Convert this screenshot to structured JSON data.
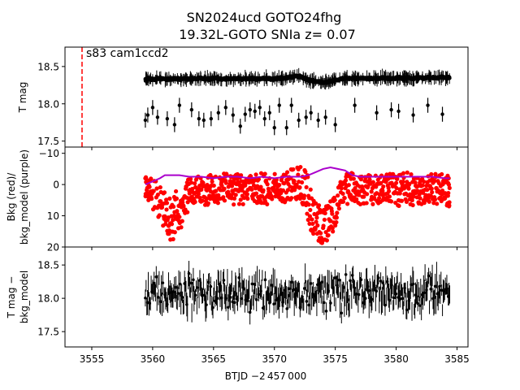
{
  "title_line1": "SN2024ucd  GOTO24fhg",
  "title_line2": "19.32L-GOTO SNIa z= 0.07",
  "annotation": "s83 cam1ccd2",
  "xlabel": "BTJD −2 457 000",
  "colors": {
    "flux": "#000000",
    "bkg": "#ff0000",
    "bkg_model": "#aa00cc",
    "marker_line": "#ff0000"
  },
  "chart_data": [
    {
      "type": "scatter",
      "name": "top",
      "ylabel": [
        "T mag"
      ],
      "y_inverted": true,
      "xlim": [
        3552.8,
        3585.9
      ],
      "ylim": [
        18.76,
        17.42
      ],
      "yticks": [
        17.5,
        18.0,
        18.5
      ],
      "ytick_labels": [
        "17.5",
        "18.0",
        "18.5"
      ],
      "vline_x": 3554.2,
      "series": [
        {
          "points": [
            [
              3559.4,
              18.32
            ],
            [
              3559.6,
              18.34
            ],
            [
              3559.8,
              18.33
            ],
            [
              3560.2,
              18.33
            ],
            [
              3560.6,
              18.34
            ],
            [
              3561.0,
              18.33
            ],
            [
              3561.4,
              18.33
            ],
            [
              3561.8,
              18.34
            ],
            [
              3562.2,
              18.33
            ],
            [
              3562.6,
              18.34
            ],
            [
              3563.0,
              18.33
            ],
            [
              3563.4,
              18.34
            ],
            [
              3563.8,
              18.34
            ],
            [
              3564.2,
              18.34
            ],
            [
              3564.6,
              18.33
            ],
            [
              3565.0,
              18.34
            ],
            [
              3565.4,
              18.34
            ],
            [
              3565.8,
              18.33
            ],
            [
              3566.2,
              18.34
            ],
            [
              3566.6,
              18.34
            ],
            [
              3567.0,
              18.34
            ],
            [
              3567.4,
              18.33
            ],
            [
              3567.8,
              18.34
            ],
            [
              3568.2,
              18.34
            ],
            [
              3568.6,
              18.33
            ],
            [
              3569.0,
              18.34
            ],
            [
              3569.4,
              18.34
            ],
            [
              3569.8,
              18.33
            ],
            [
              3570.2,
              18.34
            ],
            [
              3570.6,
              18.34
            ],
            [
              3571.0,
              18.35
            ],
            [
              3571.4,
              18.36
            ],
            [
              3571.8,
              18.37
            ],
            [
              3572.2,
              18.36
            ],
            [
              3572.6,
              18.33
            ],
            [
              3573.0,
              18.31
            ],
            [
              3573.4,
              18.3
            ],
            [
              3573.8,
              18.29
            ],
            [
              3574.2,
              18.29
            ],
            [
              3574.6,
              18.3
            ],
            [
              3575.0,
              18.32
            ],
            [
              3575.4,
              18.33
            ],
            [
              3575.8,
              18.34
            ],
            [
              3576.2,
              18.34
            ],
            [
              3576.6,
              18.34
            ],
            [
              3577.0,
              18.34
            ],
            [
              3577.4,
              18.34
            ],
            [
              3577.8,
              18.34
            ],
            [
              3578.2,
              18.34
            ],
            [
              3578.6,
              18.34
            ],
            [
              3579.0,
              18.35
            ],
            [
              3579.4,
              18.34
            ],
            [
              3579.8,
              18.34
            ],
            [
              3580.2,
              18.35
            ],
            [
              3580.6,
              18.34
            ],
            [
              3581.0,
              18.35
            ],
            [
              3581.4,
              18.34
            ],
            [
              3581.8,
              18.35
            ],
            [
              3582.2,
              18.34
            ],
            [
              3582.6,
              18.35
            ],
            [
              3583.0,
              18.35
            ],
            [
              3583.4,
              18.35
            ],
            [
              3583.8,
              18.36
            ],
            [
              3584.2,
              18.35
            ],
            [
              3584.4,
              18.36
            ]
          ]
        },
        {
          "outliers": [
            [
              3559.4,
              17.78
            ],
            [
              3559.6,
              17.85
            ],
            [
              3560.0,
              17.95
            ],
            [
              3560.4,
              17.82
            ],
            [
              3561.2,
              17.8
            ],
            [
              3561.8,
              17.72
            ],
            [
              3562.2,
              17.98
            ],
            [
              3563.2,
              17.92
            ],
            [
              3563.8,
              17.8
            ],
            [
              3564.2,
              17.78
            ],
            [
              3564.8,
              17.8
            ],
            [
              3565.4,
              17.88
            ],
            [
              3566.0,
              17.95
            ],
            [
              3566.6,
              17.85
            ],
            [
              3567.2,
              17.7
            ],
            [
              3567.6,
              17.86
            ],
            [
              3568.0,
              17.92
            ],
            [
              3568.4,
              17.9
            ],
            [
              3568.8,
              17.95
            ],
            [
              3569.2,
              17.8
            ],
            [
              3569.6,
              17.88
            ],
            [
              3570.0,
              17.68
            ],
            [
              3570.4,
              17.98
            ],
            [
              3571.0,
              17.68
            ],
            [
              3571.4,
              17.98
            ],
            [
              3572.0,
              17.78
            ],
            [
              3572.6,
              17.82
            ],
            [
              3573.0,
              17.88
            ],
            [
              3573.6,
              17.78
            ],
            [
              3574.2,
              17.82
            ],
            [
              3575.0,
              17.72
            ],
            [
              3576.6,
              17.98
            ],
            [
              3578.4,
              17.88
            ],
            [
              3579.6,
              17.92
            ],
            [
              3580.2,
              17.9
            ],
            [
              3581.4,
              17.85
            ],
            [
              3582.6,
              17.98
            ],
            [
              3583.8,
              17.86
            ]
          ]
        }
      ]
    },
    {
      "type": "scatter",
      "name": "middle",
      "ylabel": [
        "Bkg (red)/",
        "bkg_model (purple)"
      ],
      "xlim": [
        3552.8,
        3585.9
      ],
      "ylim": [
        -12,
        20
      ],
      "yticks": [
        -10,
        0,
        10,
        20
      ],
      "ytick_labels": [
        "−10",
        "0",
        "10",
        "20"
      ],
      "series": [
        {
          "name": "Bkg",
          "x": [
            3559.4,
            3559.6,
            3560.0,
            3560.6,
            3561.0,
            3561.4,
            3561.8,
            3562.2,
            3562.6,
            3563.0,
            3563.4,
            3563.8,
            3564.2,
            3564.6,
            3565.0,
            3565.4,
            3565.8,
            3566.2,
            3566.6,
            3567.0,
            3567.4,
            3567.8,
            3568.2,
            3568.6,
            3569.0,
            3569.4,
            3569.8,
            3570.2,
            3570.6,
            3571.0,
            3571.4,
            3571.8,
            3572.2,
            3572.6,
            3573.0,
            3573.4,
            3573.8,
            3574.2,
            3574.6,
            3575.0,
            3575.4,
            3575.8,
            3576.2,
            3576.6,
            3577.0,
            3577.4,
            3577.8,
            3578.2,
            3578.6,
            3579.0,
            3579.4,
            3579.8,
            3580.2,
            3580.6,
            3581.0,
            3581.4,
            3581.8,
            3582.2,
            3582.6,
            3583.0,
            3583.4,
            3583.8,
            3584.2,
            3584.4
          ],
          "center": [
            1,
            2,
            3,
            6,
            10,
            11,
            10,
            9,
            6,
            3,
            2,
            2,
            2,
            1.5,
            1,
            2,
            1,
            1,
            2,
            1,
            2,
            1,
            1,
            2,
            1,
            2,
            1,
            1,
            2,
            1,
            0,
            0,
            -1,
            2,
            8,
            12,
            13,
            13,
            11,
            8,
            4,
            2,
            1,
            1,
            2,
            1,
            1,
            2,
            1,
            2,
            1,
            1,
            2,
            1,
            1,
            2,
            2,
            1,
            2,
            1,
            2,
            1,
            2,
            2
          ],
          "spread": [
            4,
            4,
            5,
            6,
            8,
            8,
            8,
            7,
            6,
            5,
            5,
            5,
            5,
            5,
            5,
            5,
            5,
            5,
            5,
            5,
            5,
            5,
            5,
            5,
            5,
            5,
            5,
            5,
            5,
            5,
            5,
            5,
            6,
            7,
            7,
            6,
            6,
            6,
            6,
            6,
            6,
            5,
            5,
            5,
            5,
            5,
            5,
            5,
            5,
            5,
            5,
            5,
            5,
            5,
            5,
            5,
            5,
            5,
            5,
            5,
            5,
            5,
            5,
            5
          ]
        },
        {
          "name": "bkg_model",
          "x": [
            3559.4,
            3560.0,
            3560.6,
            3561.0,
            3561.6,
            3562.2,
            3563.0,
            3564.0,
            3565.0,
            3566.0,
            3567.0,
            3568.0,
            3569.0,
            3570.0,
            3571.0,
            3571.6,
            3572.2,
            3572.8,
            3573.4,
            3574.0,
            3574.6,
            3575.2,
            3575.8,
            3576.4,
            3577.0,
            3578.0,
            3579.0,
            3580.0,
            3581.0,
            3582.0,
            3583.0,
            3584.0,
            3584.4
          ],
          "y": [
            0,
            -1,
            -2,
            -3,
            -3,
            -3,
            -2.5,
            -2.5,
            -2,
            -2.5,
            -2.5,
            -2,
            -2.5,
            -2,
            -2.5,
            -2.5,
            -2.5,
            -3,
            -4,
            -5,
            -5.5,
            -5,
            -4.5,
            -3,
            -2.5,
            -2.5,
            -2.5,
            -2.5,
            -2.5,
            -2.5,
            -2.5,
            -2,
            -2
          ]
        }
      ]
    },
    {
      "type": "scatter",
      "name": "bottom",
      "ylabel": [
        "T mag −",
        "bkg_model"
      ],
      "y_inverted": true,
      "xlim": [
        3552.8,
        3585.9
      ],
      "ylim": [
        18.77,
        17.27
      ],
      "yticks": [
        17.5,
        18.0,
        18.5
      ],
      "ytick_labels": [
        "17.5",
        "18.0",
        "18.5"
      ],
      "series": [
        {
          "x_start": 3559.4,
          "x_end": 3584.4,
          "center": 18.08,
          "spread": 0.32
        }
      ]
    }
  ],
  "xticks": [
    3555,
    3560,
    3565,
    3570,
    3575,
    3580,
    3585
  ],
  "xtick_labels": [
    "3555",
    "3560",
    "3565",
    "3570",
    "3575",
    "3580",
    "3585"
  ]
}
